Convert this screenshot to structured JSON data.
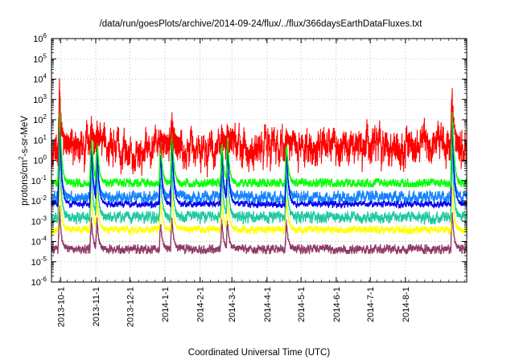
{
  "chart_data": {
    "type": "line",
    "title": "/data/run/goesPlots/archive/2014-09-24/flux/../flux/366daysEarthDataFluxes.txt",
    "xlabel": "Coordinated Universal Time (UTC)",
    "ylabel": {
      "base": "protons/cm",
      "sup": "2",
      "rest": "-s-sr-MeV"
    },
    "yscale": "log",
    "ylim_exponents": [
      -6,
      6
    ],
    "y_ticks": [
      {
        "base": "10",
        "exp": "-6"
      },
      {
        "base": "10",
        "exp": "-5"
      },
      {
        "base": "10",
        "exp": "-4"
      },
      {
        "base": "10",
        "exp": "-3"
      },
      {
        "base": "10",
        "exp": "-2"
      },
      {
        "base": "10",
        "exp": "-1"
      },
      {
        "base": "10",
        "exp": "0"
      },
      {
        "base": "10",
        "exp": "1"
      },
      {
        "base": "10",
        "exp": "2"
      },
      {
        "base": "10",
        "exp": "3"
      },
      {
        "base": "10",
        "exp": "4"
      },
      {
        "base": "10",
        "exp": "5"
      },
      {
        "base": "10",
        "exp": "6"
      }
    ],
    "xlim": [
      "2013-09-23",
      "2014-09-24"
    ],
    "x_ticks": [
      "2013-10-1",
      "2013-11-1",
      "2013-12-1",
      "2014-1-1",
      "2014-2-1",
      "2014-3-1",
      "2014-4-1",
      "2014-5-1",
      "2014-6-1",
      "2014-7-1",
      "2014-8-1"
    ],
    "grid": true,
    "events": [
      {
        "date": "2013-09-30",
        "peak_exp": 4.1
      },
      {
        "date": "2013-10-28",
        "peak_exp": 2.3
      },
      {
        "date": "2013-11-02",
        "peak_exp": 2.0
      },
      {
        "date": "2013-12-28",
        "peak_exp": 1.6
      },
      {
        "date": "2014-01-07",
        "peak_exp": 2.6
      },
      {
        "date": "2014-02-20",
        "peak_exp": 1.8
      },
      {
        "date": "2014-02-25",
        "peak_exp": 1.9
      },
      {
        "date": "2014-04-18",
        "peak_exp": 1.6
      },
      {
        "date": "2014-09-11",
        "peak_exp": 4.1
      }
    ],
    "series": [
      {
        "color": "#8e3a66",
        "baseline_exp": -4.3,
        "floor_exp": -4.6,
        "noise": 0.15,
        "event_gain": 0.25
      },
      {
        "color": "#ffff00",
        "baseline_exp": -3.35,
        "floor_exp": -3.7,
        "noise": 0.12,
        "event_gain": 0.35
      },
      {
        "color": "#1ec99f",
        "baseline_exp": -2.7,
        "floor_exp": -3.2,
        "noise": 0.18,
        "event_gain": 0.55
      },
      {
        "color": "#1482ff",
        "baseline_exp": -1.7,
        "floor_exp": -2.3,
        "noise": 0.2,
        "event_gain": 0.7
      },
      {
        "color": "#0000ee",
        "baseline_exp": -2.1,
        "floor_exp": -2.4,
        "noise": 0.1,
        "event_gain": 0.82
      },
      {
        "color": "#00ff00",
        "baseline_exp": -1.05,
        "floor_exp": -1.3,
        "noise": 0.15,
        "event_gain": 0.9
      },
      {
        "color": "#ff0000",
        "baseline_exp": 1.1,
        "floor_exp": -1.0,
        "noise": 0.75,
        "event_gain": 1.0
      }
    ]
  }
}
